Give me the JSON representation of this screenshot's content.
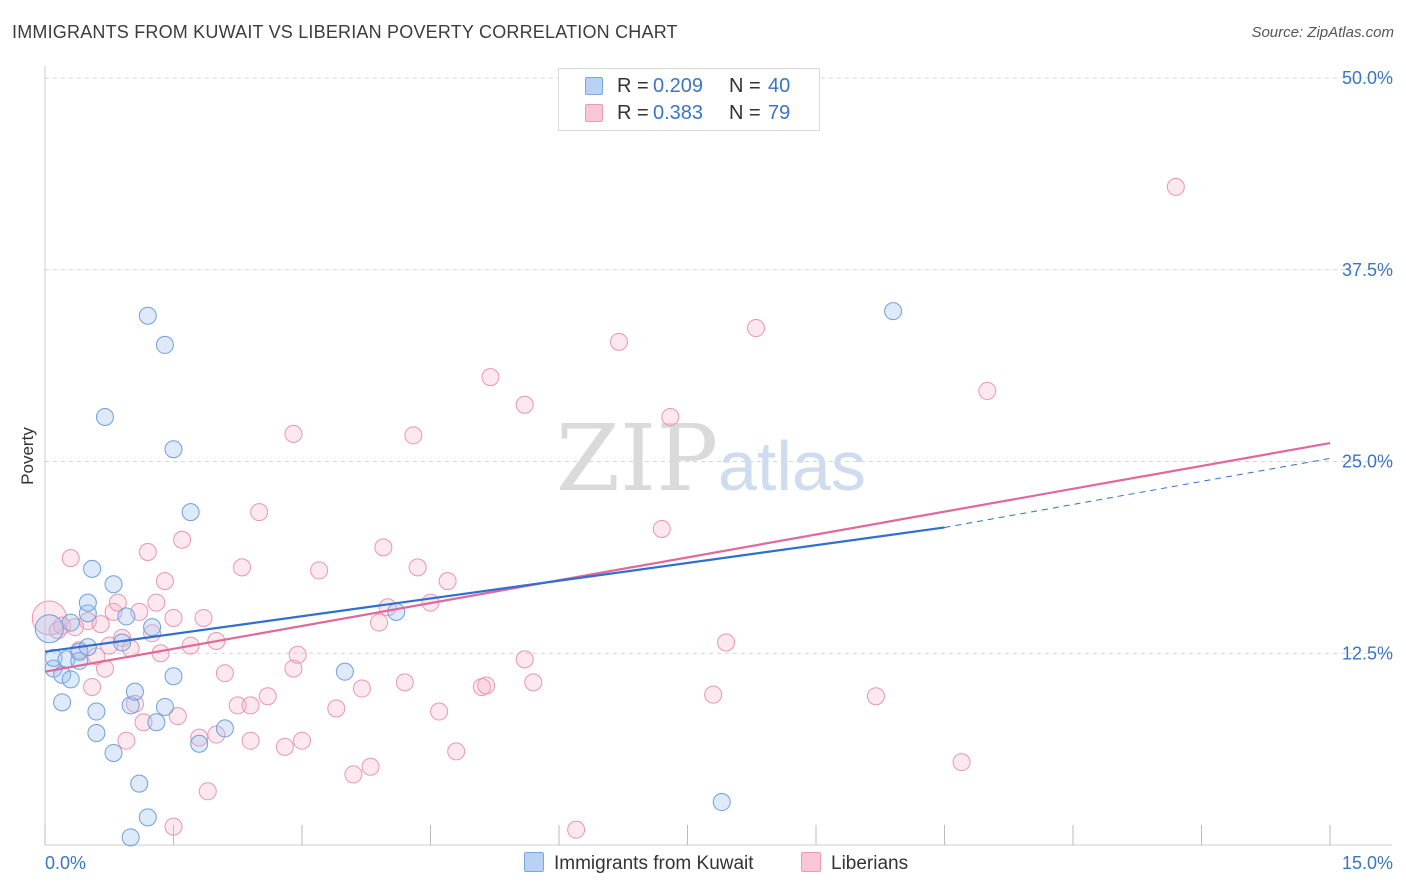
{
  "title": "IMMIGRANTS FROM KUWAIT VS LIBERIAN POVERTY CORRELATION CHART",
  "source": "Source: ZipAtlas.com",
  "watermark": {
    "zip": "ZIP",
    "atlas": "atlas"
  },
  "legend": {
    "rows": [
      {
        "swatch_fill": "#b9d2f3",
        "swatch_border": "#7aa7e0",
        "r_label": "R =",
        "r_value": "0.209",
        "n_label": "N =",
        "n_value": "40"
      },
      {
        "swatch_fill": "#f8c6d5",
        "swatch_border": "#ee9ab4",
        "r_label": "R =",
        "r_value": "0.383",
        "n_label": "N =",
        "n_value": "79"
      }
    ]
  },
  "bottom_legend": {
    "items": [
      {
        "label": "Immigrants from Kuwait",
        "fill": "#b9d2f3",
        "border": "#7aa7e0"
      },
      {
        "label": "Liberians",
        "fill": "#f8c6d5",
        "border": "#ee9ab4"
      }
    ]
  },
  "colors": {
    "blue_point_fill": "rgba(160,196,240,0.35)",
    "blue_point_stroke": "#6f9fdc",
    "pink_point_fill": "rgba(246,180,200,0.30)",
    "pink_point_stroke": "#ec95b1",
    "blue_line": "#2f6fcf",
    "pink_line": "#e0689a",
    "tick_label": "#3a75c4",
    "grid": "#d5d5d5"
  },
  "chart_data": {
    "type": "scatter",
    "title": "IMMIGRANTS FROM KUWAIT VS LIBERIAN POVERTY CORRELATION CHART",
    "xlabel": "",
    "ylabel": "Poverty",
    "xlim": [
      0,
      15
    ],
    "ylim": [
      0,
      50
    ],
    "x_tick_labels": [
      {
        "value": 0,
        "label": "0.0%"
      },
      {
        "value": 15,
        "label": "15.0%"
      }
    ],
    "y_tick_labels": [
      {
        "value": 12.5,
        "label": "12.5%"
      },
      {
        "value": 25,
        "label": "25.0%"
      },
      {
        "value": 37.5,
        "label": "37.5%"
      },
      {
        "value": 50,
        "label": "50.0%"
      }
    ],
    "grid": true,
    "legend_position": "top-center",
    "series": [
      {
        "name": "Immigrants from Kuwait",
        "r": 0.209,
        "n": 40,
        "trend": {
          "x": [
            0,
            10.5
          ],
          "y": [
            12.6,
            20.7
          ],
          "dashed_extension_to": [
            15,
            25.2
          ]
        },
        "points": [
          [
            0.05,
            14.1
          ],
          [
            0.1,
            11.5
          ],
          [
            0.1,
            12.2
          ],
          [
            0.2,
            11.1
          ],
          [
            0.2,
            9.3
          ],
          [
            0.25,
            12.1
          ],
          [
            0.3,
            14.5
          ],
          [
            0.4,
            12.0
          ],
          [
            0.4,
            12.6
          ],
          [
            0.5,
            15.1
          ],
          [
            0.5,
            15.8
          ],
          [
            0.55,
            18.0
          ],
          [
            0.6,
            7.3
          ],
          [
            0.6,
            8.7
          ],
          [
            0.7,
            27.9
          ],
          [
            0.8,
            6.0
          ],
          [
            0.8,
            17.0
          ],
          [
            0.9,
            13.2
          ],
          [
            0.95,
            14.9
          ],
          [
            1.0,
            9.1
          ],
          [
            1.05,
            10.0
          ],
          [
            1.1,
            4.0
          ],
          [
            1.2,
            1.8
          ],
          [
            1.2,
            34.5
          ],
          [
            1.25,
            14.2
          ],
          [
            1.3,
            8.0
          ],
          [
            1.4,
            9.0
          ],
          [
            1.4,
            32.6
          ],
          [
            1.5,
            25.8
          ],
          [
            1.5,
            11.0
          ],
          [
            1.7,
            21.7
          ],
          [
            1.8,
            6.6
          ],
          [
            2.1,
            7.6
          ],
          [
            3.5,
            11.3
          ],
          [
            4.1,
            15.2
          ],
          [
            7.9,
            2.8
          ],
          [
            9.9,
            34.8
          ],
          [
            1.0,
            0.5
          ],
          [
            0.3,
            10.8
          ],
          [
            0.5,
            12.9
          ]
        ]
      },
      {
        "name": "Liberians",
        "r": 0.383,
        "n": 79,
        "trend": {
          "x": [
            0,
            15
          ],
          "y": [
            11.3,
            26.2
          ]
        },
        "points": [
          [
            0.05,
            14.8
          ],
          [
            0.15,
            14.0
          ],
          [
            0.2,
            14.3
          ],
          [
            0.3,
            18.7
          ],
          [
            0.4,
            12.7
          ],
          [
            0.5,
            14.6
          ],
          [
            0.55,
            10.3
          ],
          [
            0.6,
            12.3
          ],
          [
            0.65,
            14.4
          ],
          [
            0.7,
            11.5
          ],
          [
            0.75,
            13.0
          ],
          [
            0.8,
            15.2
          ],
          [
            0.85,
            15.8
          ],
          [
            0.9,
            13.5
          ],
          [
            0.95,
            6.8
          ],
          [
            1.0,
            12.8
          ],
          [
            1.05,
            9.2
          ],
          [
            1.1,
            15.2
          ],
          [
            1.15,
            8.0
          ],
          [
            1.2,
            19.1
          ],
          [
            1.25,
            13.8
          ],
          [
            1.3,
            15.8
          ],
          [
            1.35,
            12.5
          ],
          [
            1.4,
            17.2
          ],
          [
            1.5,
            1.2
          ],
          [
            1.5,
            14.8
          ],
          [
            1.55,
            8.4
          ],
          [
            1.6,
            19.9
          ],
          [
            1.7,
            13.0
          ],
          [
            1.8,
            7.0
          ],
          [
            1.85,
            14.8
          ],
          [
            1.9,
            3.5
          ],
          [
            2.0,
            7.2
          ],
          [
            2.0,
            13.3
          ],
          [
            2.1,
            11.2
          ],
          [
            2.25,
            9.1
          ],
          [
            2.3,
            18.1
          ],
          [
            2.4,
            6.8
          ],
          [
            2.4,
            9.1
          ],
          [
            2.5,
            21.7
          ],
          [
            2.6,
            9.7
          ],
          [
            2.8,
            6.4
          ],
          [
            2.9,
            26.8
          ],
          [
            2.9,
            11.5
          ],
          [
            2.95,
            12.4
          ],
          [
            3.0,
            6.8
          ],
          [
            3.2,
            17.9
          ],
          [
            3.4,
            8.9
          ],
          [
            3.6,
            4.6
          ],
          [
            3.7,
            10.2
          ],
          [
            3.8,
            5.1
          ],
          [
            3.9,
            14.5
          ],
          [
            3.95,
            19.4
          ],
          [
            4.0,
            15.5
          ],
          [
            4.2,
            10.6
          ],
          [
            4.3,
            26.7
          ],
          [
            4.35,
            18.1
          ],
          [
            4.5,
            15.8
          ],
          [
            4.6,
            8.7
          ],
          [
            4.7,
            17.2
          ],
          [
            4.8,
            6.1
          ],
          [
            5.1,
            10.3
          ],
          [
            5.15,
            10.4
          ],
          [
            5.2,
            30.5
          ],
          [
            5.6,
            12.1
          ],
          [
            5.6,
            28.7
          ],
          [
            5.7,
            10.6
          ],
          [
            6.2,
            1.0
          ],
          [
            6.7,
            32.8
          ],
          [
            7.2,
            20.6
          ],
          [
            7.3,
            27.9
          ],
          [
            7.8,
            9.8
          ],
          [
            7.95,
            13.2
          ],
          [
            8.3,
            33.7
          ],
          [
            9.7,
            9.7
          ],
          [
            10.7,
            5.4
          ],
          [
            11.0,
            29.6
          ],
          [
            13.2,
            42.9
          ],
          [
            0.35,
            14.2
          ]
        ]
      }
    ]
  }
}
